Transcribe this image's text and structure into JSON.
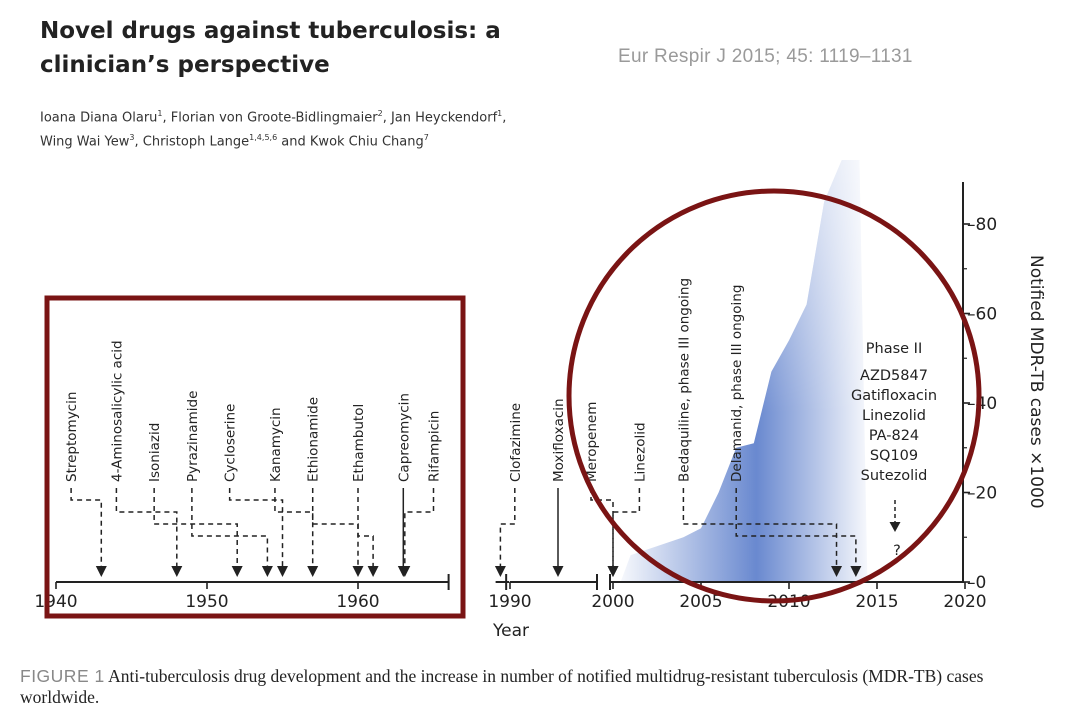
{
  "header": {
    "title": "Novel drugs against tuberculosis: a clinician’s perspective",
    "citation": "Eur Respir J 2015; 45: 1119–1131",
    "authors_line1": [
      {
        "name": "Ioana Diana Olaru",
        "sup": "1",
        "sep": ", "
      },
      {
        "name": "Florian von Groote-Bidlingmaier",
        "sup": "2",
        "sep": ", "
      },
      {
        "name": "Jan Heyckendorf",
        "sup": "1",
        "sep": ","
      }
    ],
    "authors_line2": [
      {
        "name": "Wing Wai Yew",
        "sup": "3",
        "sep": ", "
      },
      {
        "name": "Christoph Lange",
        "sup": "1,4,5,6",
        "sep": " and "
      },
      {
        "name": "Kwok Chiu Chang",
        "sup": "7",
        "sep": ""
      }
    ]
  },
  "caption": {
    "figure_label": "FIGURE 1",
    "text": "Anti-tuberculosis drug development and the increase in number of notified multidrug-resistant tuberculosis (MDR-TB) cases worldwide."
  },
  "chart_data": {
    "type": "area",
    "xlabel": "Year",
    "ylabel": "Notified MDR-TB cases ×1000",
    "xlim": [
      1940,
      2020
    ],
    "ylim": [
      0,
      90
    ],
    "x_ticks": [
      1940,
      1950,
      1960,
      1990,
      2000,
      2005,
      2010,
      2015,
      2020
    ],
    "y_ticks": [
      0,
      20,
      40,
      60,
      80
    ],
    "axis_breaks": [
      1966,
      1989
    ],
    "area_series": {
      "x": [
        2001,
        2004,
        2005,
        2006,
        2007,
        2008,
        2009,
        2010,
        2011,
        2012,
        2013,
        2014
      ],
      "values": [
        6,
        10,
        12,
        20,
        30,
        31,
        47,
        54,
        62,
        85,
        96,
        103
      ]
    },
    "drugs": [
      {
        "name": "Streptomycin",
        "label_year": 1941,
        "year": 1943
      },
      {
        "name": "4-Aminosalicylic acid",
        "label_year": 1944,
        "year": 1948
      },
      {
        "name": "Isoniazid",
        "label_year": 1946.5,
        "year": 1952
      },
      {
        "name": "Pyrazinamide",
        "label_year": 1949,
        "year": 1954
      },
      {
        "name": "Cycloserine",
        "label_year": 1951.5,
        "year": 1955
      },
      {
        "name": "Kanamycin",
        "label_year": 1954.5,
        "year": 1957
      },
      {
        "name": "Ethionamide",
        "label_year": 1957,
        "year": 1960
      },
      {
        "name": "Ethambutol",
        "label_year": 1960,
        "year": 1961
      },
      {
        "name": "Capreomycin",
        "label_year": 1963,
        "year": 1963
      },
      {
        "name": "Rifampicin",
        "label_year": 1965,
        "year": 1963.1
      },
      {
        "name": "Clofazimine",
        "label_year": 1990.5,
        "year": 1989
      },
      {
        "name": "Moxifloxacin",
        "label_year": 1995,
        "year": 1995
      },
      {
        "name": "Meropenem",
        "label_year": 1998,
        "year": 2000
      },
      {
        "name": "Linezolid",
        "label_year": 2001.5,
        "year": 2000
      },
      {
        "name": "Bedaquiline, phase III ongoing",
        "label_year": 2004,
        "year": 2012.7
      },
      {
        "name": "Delamanid, phase III ongoing",
        "label_year": 2007,
        "year": 2013.8
      }
    ],
    "annotations": {
      "phase_title": "Phase II",
      "phase_drugs": [
        "AZD5847",
        "Gatifloxacin",
        "Linezolid",
        "PA-824",
        "SQ109",
        "Sutezolid"
      ],
      "question_mark": "?"
    },
    "highlights": {
      "rect_color": "#7a1414",
      "circle_color": "#7a1414"
    },
    "area_color": "#4f74c7"
  }
}
